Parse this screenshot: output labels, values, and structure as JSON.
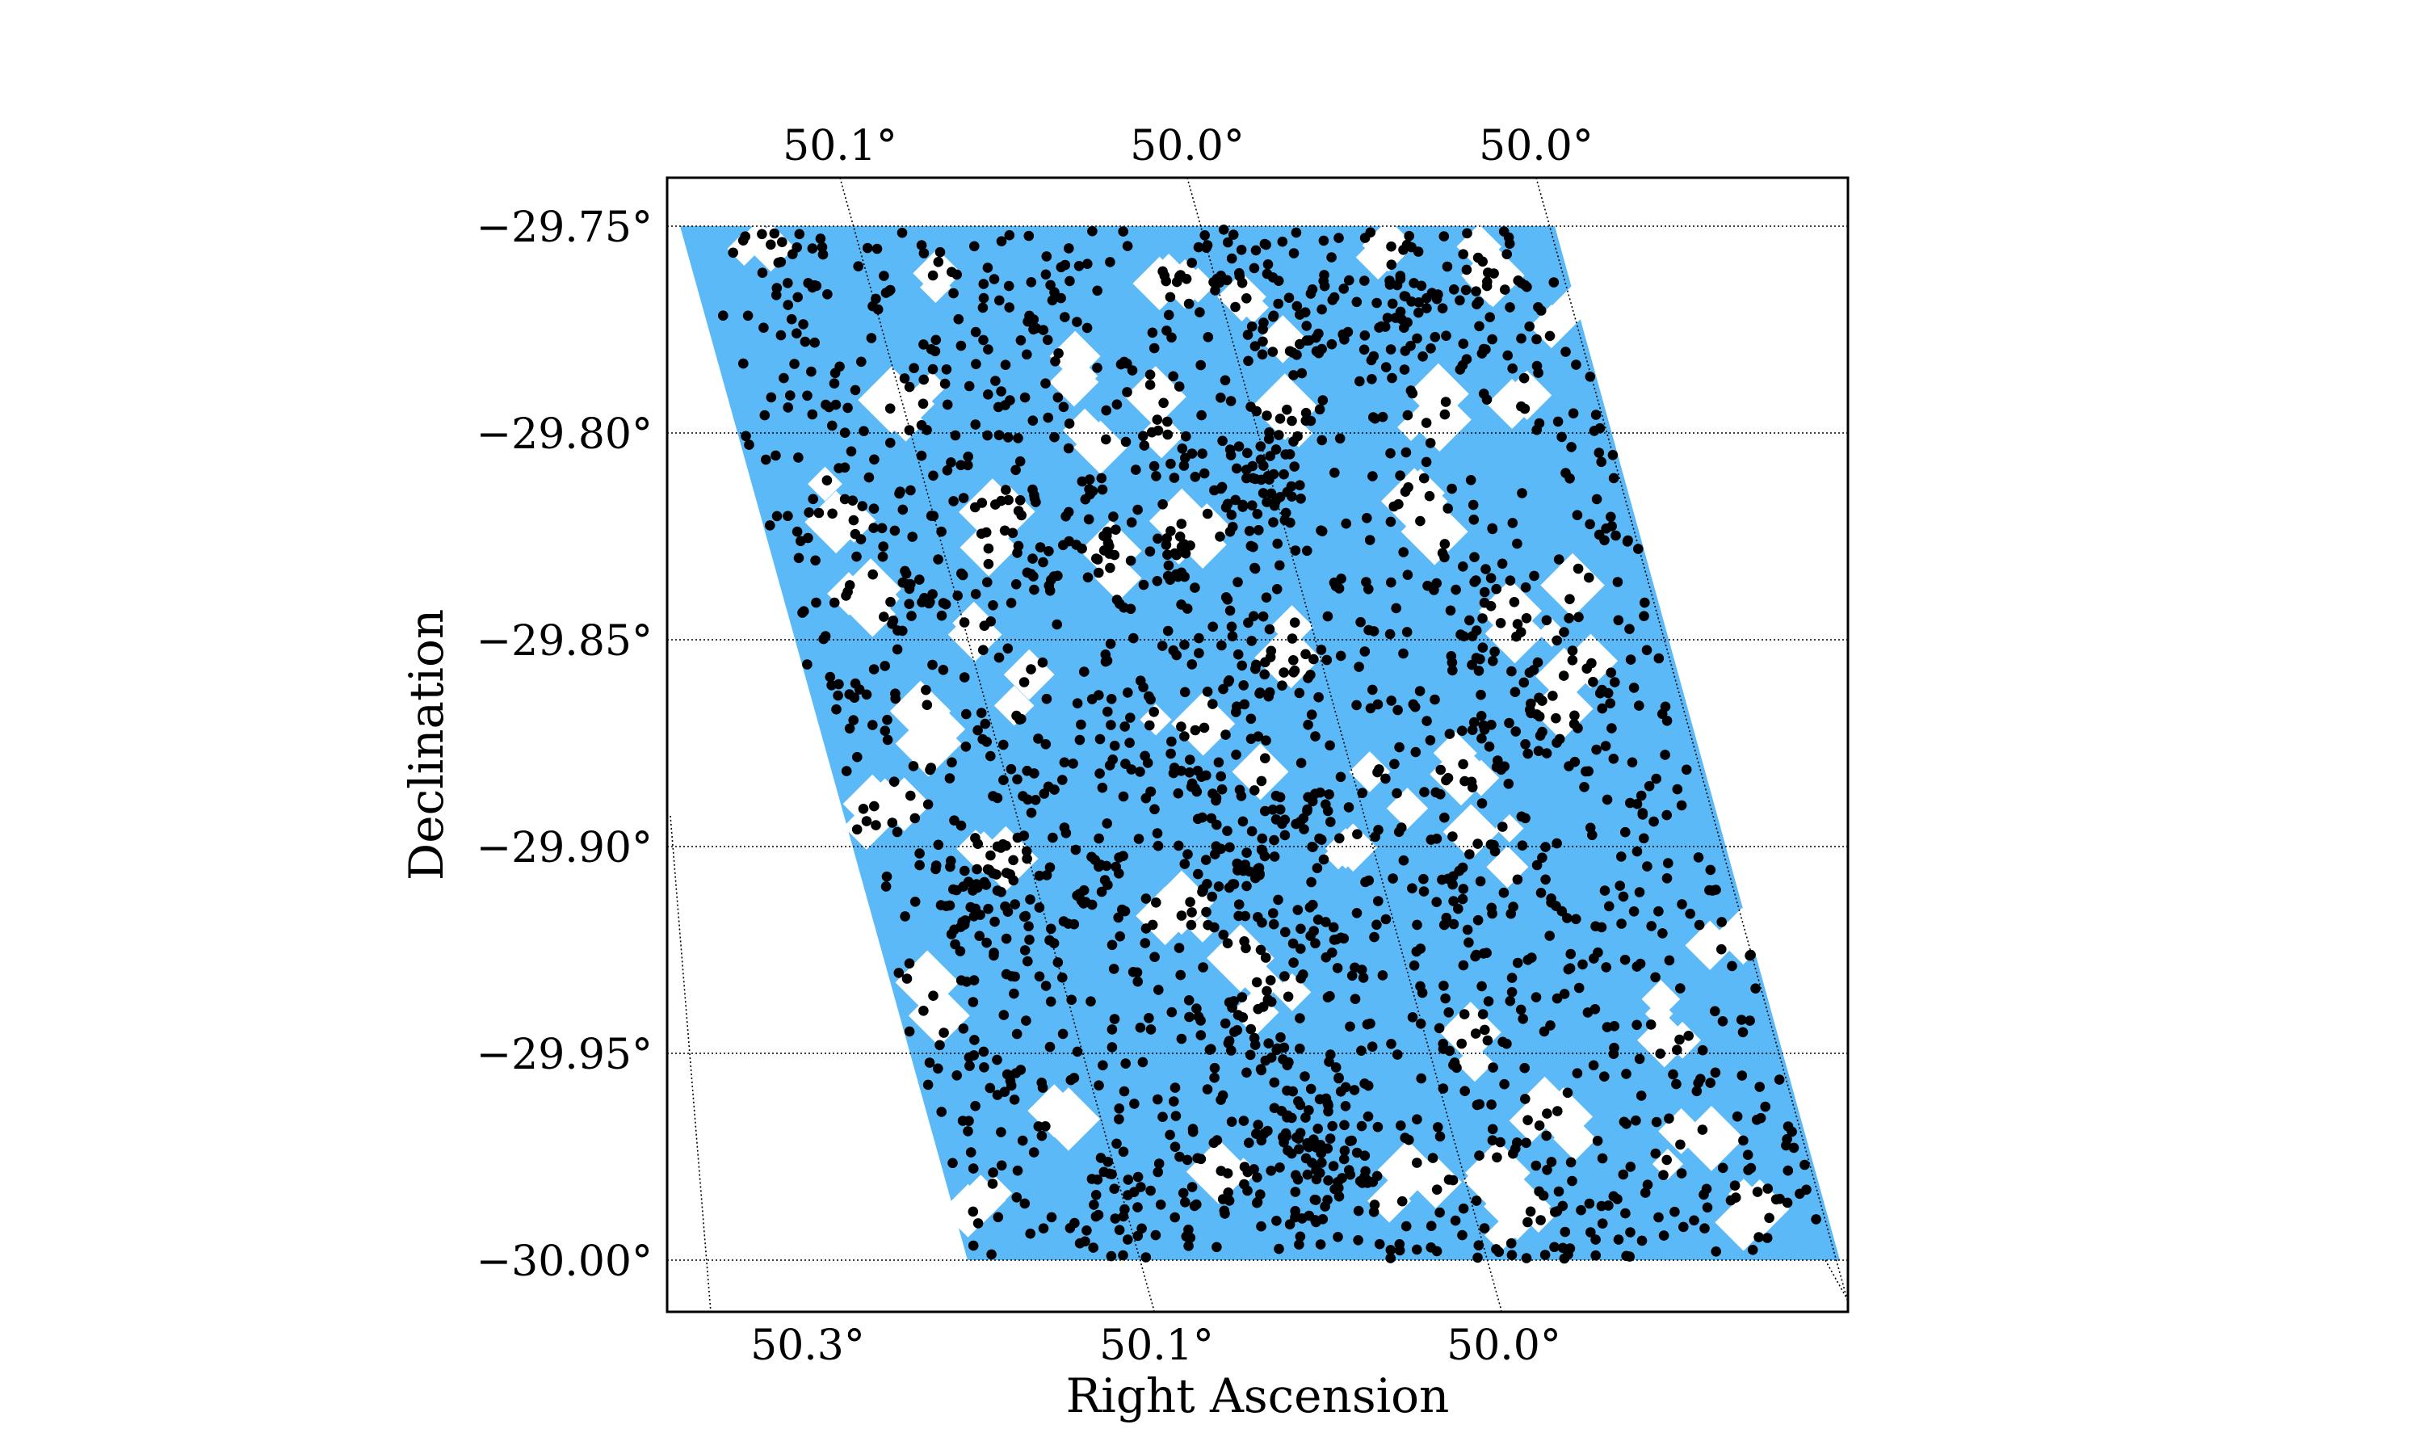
{
  "chart_data": {
    "type": "scatter",
    "title": "",
    "xlabel": "Right Ascension",
    "ylabel": "Declination",
    "colors": {
      "coverage": "#5bb9f7",
      "points": "#000000",
      "masked": "#ffffff",
      "grid": "#000000"
    },
    "dec_ticks": [
      {
        "value": -29.75,
        "label": "−29.75°"
      },
      {
        "value": -29.8,
        "label": "−29.80°"
      },
      {
        "value": -29.85,
        "label": "−29.85°"
      },
      {
        "value": -29.9,
        "label": "−29.90°"
      },
      {
        "value": -29.95,
        "label": "−29.95°"
      },
      {
        "value": -30.0,
        "label": "−30.00°"
      }
    ],
    "ra_ticks_bottom": [
      "50.3°",
      "50.1°",
      "50.0°"
    ],
    "ra_ticks_top": [
      "50.1°",
      "50.0°",
      "50.0°"
    ],
    "grid": true,
    "series": [
      {
        "values": "~2200 point sources scattered over the covered region"
      }
    ]
  }
}
